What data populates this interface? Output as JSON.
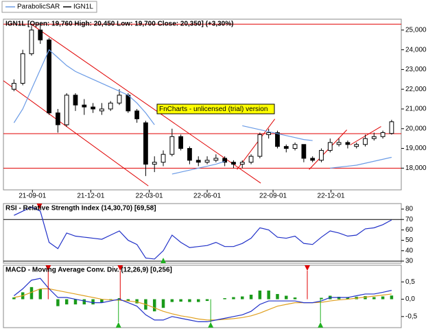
{
  "chart_data": [
    {
      "type": "candlestick",
      "name": "IGN1L",
      "color": "#000000",
      "title": "IGN1L  [Open: 19,760  High: 20,450  Low: 19,700  Close: 20,350]  (+3,30%)",
      "watermark": "FnCharts - unlicensed (trial) version",
      "x": [
        0,
        1,
        2,
        3,
        4,
        5,
        6,
        7,
        8,
        9,
        10,
        11,
        12,
        13,
        14,
        15,
        16,
        17,
        18,
        19,
        20,
        21,
        22,
        23,
        24,
        25,
        26,
        27,
        28,
        29,
        30,
        31,
        32,
        33,
        34,
        35,
        36,
        37,
        38,
        39,
        40,
        41,
        42,
        43
      ],
      "open": [
        22000,
        22300,
        23800,
        25000,
        24500,
        20800,
        20200,
        21700,
        21200,
        21100,
        20900,
        21000,
        21300,
        21700,
        20900,
        20300,
        18200,
        18300,
        18700,
        19600,
        19000,
        18400,
        18300,
        18400,
        18500,
        18300,
        18200,
        18300,
        18600,
        19700,
        19800,
        19100,
        19000,
        19200,
        18500,
        18400,
        18900,
        19200,
        19300,
        19100,
        19200,
        19500,
        19600,
        19760
      ],
      "high": [
        22500,
        24000,
        25200,
        25300,
        24600,
        21000,
        21800,
        21800,
        21500,
        21300,
        21300,
        21400,
        22000,
        21800,
        21000,
        20400,
        18600,
        18900,
        20000,
        19700,
        19100,
        18600,
        18600,
        18700,
        18600,
        18400,
        18400,
        18700,
        19800,
        20000,
        19900,
        19200,
        19300,
        19200,
        18600,
        19000,
        19500,
        19500,
        19400,
        19300,
        19700,
        19800,
        19900,
        20450
      ],
      "low": [
        21900,
        22200,
        23700,
        24300,
        20700,
        19800,
        20100,
        20900,
        20700,
        20800,
        20700,
        20900,
        21200,
        20800,
        20300,
        17600,
        17800,
        18100,
        18600,
        18900,
        18200,
        18100,
        18200,
        18300,
        18100,
        18000,
        18000,
        18200,
        18500,
        19500,
        19000,
        18800,
        18900,
        18300,
        18300,
        18300,
        18800,
        19100,
        19000,
        19000,
        19100,
        19400,
        19500,
        19700
      ],
      "close": [
        22300,
        23800,
        25000,
        24500,
        20800,
        20200,
        21700,
        21200,
        21100,
        21000,
        21000,
        21300,
        21700,
        20900,
        20500,
        18200,
        18300,
        18700,
        19600,
        19000,
        18400,
        18300,
        18400,
        18500,
        18300,
        18200,
        18300,
        18600,
        19700,
        19800,
        19100,
        19000,
        19200,
        18500,
        18400,
        18900,
        19300,
        19300,
        19200,
        19200,
        19500,
        19600,
        19800,
        20350
      ],
      "series": [
        {
          "name": "ParabolicSAR",
          "color": "#6a9be6",
          "values": [
            20300,
            21000,
            22000,
            23000,
            24000,
            23600,
            23200,
            22900,
            22700,
            22500,
            22300,
            22100,
            21900,
            21700,
            21300,
            20800,
            20200,
            null,
            17700,
            17800,
            17900,
            18000,
            18100,
            18200,
            18350,
            null,
            20150,
            20050,
            19950,
            19850,
            19750,
            19650,
            19550,
            19450,
            19400,
            null,
            18000,
            18050,
            18100,
            18150,
            18250,
            18350,
            18450,
            18550
          ]
        }
      ],
      "hlines": [
        25300,
        19750,
        18000
      ],
      "trendlines": [
        [
          -1.2,
          22430,
          15.3,
          17100
        ],
        [
          1.95,
          25300,
          28.1,
          17240
        ],
        [
          25.4,
          17930,
          29.7,
          20490
        ],
        [
          33.6,
          17930,
          37.9,
          19940
        ],
        [
          38.3,
          19180,
          41.8,
          20110
        ]
      ],
      "line_color": "#e00000",
      "xlim": [
        -1.2,
        44.1
      ],
      "xticks": [
        {
          "value": 2.1,
          "label": "21-09-01"
        },
        {
          "value": 8.75,
          "label": "21-12-01"
        },
        {
          "value": 15.4,
          "label": "22-03-01"
        },
        {
          "value": 22.0,
          "label": "22-06-01"
        },
        {
          "value": 29.5,
          "label": "22-09-01"
        },
        {
          "value": 36.1,
          "label": "22-12-01"
        }
      ],
      "ylim": [
        16900,
        25550
      ],
      "yticks": [
        {
          "value": 18000,
          "label": "18,000"
        },
        {
          "value": 19000,
          "label": "19,000"
        },
        {
          "value": 20000,
          "label": "20,000"
        },
        {
          "value": 21000,
          "label": "21,000"
        },
        {
          "value": 22000,
          "label": "22,000"
        },
        {
          "value": 23000,
          "label": "23,000"
        },
        {
          "value": 24000,
          "label": "24,000"
        },
        {
          "value": 25000,
          "label": "25,000"
        }
      ]
    },
    {
      "type": "line",
      "title": "RSI - Relative Strength Index (14,30,70) [69,58]",
      "x": [
        0,
        1,
        2,
        3,
        4,
        5,
        6,
        7,
        8,
        9,
        10,
        11,
        12,
        13,
        14,
        15,
        16,
        17,
        18,
        19,
        20,
        21,
        22,
        23,
        24,
        25,
        26,
        27,
        28,
        29,
        30,
        31,
        32,
        33,
        34,
        35,
        36,
        37,
        38,
        39,
        40,
        41,
        42,
        43
      ],
      "series": [
        {
          "name": "RSI",
          "color": "#2030c8",
          "values": [
            74,
            78,
            82,
            78,
            48,
            42,
            57,
            54,
            53,
            52,
            51,
            55,
            59,
            50,
            46,
            33,
            32,
            40,
            55,
            48,
            43,
            44,
            45,
            48,
            44,
            44,
            47,
            52,
            62,
            60,
            53,
            52,
            54,
            47,
            46,
            53,
            59,
            57,
            54,
            55,
            61,
            62,
            65,
            69.58
          ]
        }
      ],
      "hlines": [
        70,
        30
      ],
      "line_color": "#000000",
      "markers": [
        {
          "x": 2.9,
          "kind": "sell"
        },
        {
          "x": 17,
          "kind": "buy"
        }
      ],
      "xlim": [
        -1.2,
        44.1
      ],
      "ylim": [
        28,
        85.3
      ],
      "yticks": [
        30,
        40,
        50,
        60,
        70,
        80
      ]
    },
    {
      "type": "combo",
      "title": "MACD - Moving Average Conv. Div. (12,26,9) [0,256]",
      "x": [
        0,
        1,
        2,
        3,
        4,
        5,
        6,
        7,
        8,
        9,
        10,
        11,
        12,
        13,
        14,
        15,
        16,
        17,
        18,
        19,
        20,
        21,
        22,
        23,
        24,
        25,
        26,
        27,
        28,
        29,
        30,
        31,
        32,
        33,
        34,
        35,
        36,
        37,
        38,
        39,
        40,
        41,
        42,
        43
      ],
      "series": [
        {
          "name": "Histogram",
          "kind": "bar",
          "color": "#1a9a1a",
          "values": [
            0.05,
            0.2,
            0.35,
            0.3,
            0.0,
            -0.2,
            -0.15,
            -0.15,
            -0.15,
            -0.15,
            -0.1,
            -0.03,
            0.03,
            -0.05,
            -0.12,
            -0.3,
            -0.35,
            -0.25,
            -0.08,
            -0.07,
            -0.08,
            -0.08,
            -0.05,
            0.0,
            0.03,
            0.06,
            0.08,
            0.13,
            0.25,
            0.25,
            0.15,
            0.1,
            0.05,
            0.0,
            0.0,
            0.04,
            0.1,
            0.07,
            0.05,
            0.07,
            0.09,
            0.06,
            0.08,
            0.106
          ]
        },
        {
          "name": "Signal",
          "kind": "line",
          "color": "#e0a020",
          "values": [
            0.05,
            0.1,
            0.2,
            0.3,
            0.3,
            0.25,
            0.2,
            0.15,
            0.1,
            0.05,
            0.0,
            -0.02,
            -0.03,
            -0.05,
            -0.08,
            -0.15,
            -0.25,
            -0.35,
            -0.42,
            -0.48,
            -0.52,
            -0.57,
            -0.6,
            -0.6,
            -0.58,
            -0.56,
            -0.53,
            -0.48,
            -0.4,
            -0.3,
            -0.2,
            -0.15,
            -0.1,
            -0.1,
            -0.1,
            -0.09,
            -0.05,
            -0.02,
            0.0,
            0.03,
            0.06,
            0.09,
            0.12,
            0.15
          ]
        },
        {
          "name": "MACD",
          "kind": "line",
          "color": "#2030c8",
          "values": [
            0.1,
            0.3,
            0.55,
            0.6,
            0.3,
            0.05,
            0.05,
            0.0,
            -0.05,
            -0.1,
            -0.1,
            -0.05,
            0.0,
            -0.1,
            -0.2,
            -0.45,
            -0.6,
            -0.6,
            -0.5,
            -0.55,
            -0.6,
            -0.65,
            -0.65,
            -0.6,
            -0.55,
            -0.5,
            -0.45,
            -0.35,
            -0.15,
            -0.05,
            -0.05,
            -0.05,
            -0.05,
            -0.1,
            -0.1,
            -0.05,
            0.05,
            0.05,
            0.05,
            0.1,
            0.15,
            0.15,
            0.2,
            0.256
          ]
        }
      ],
      "markers": [
        {
          "x": 3.9,
          "kind": "sell"
        },
        {
          "x": 12.1,
          "kind": "sell"
        },
        {
          "x": 33.4,
          "kind": "sell"
        },
        {
          "x": 11.9,
          "kind": "buy"
        },
        {
          "x": 22.4,
          "kind": "buy"
        },
        {
          "x": 34.9,
          "kind": "buy"
        }
      ],
      "xlim": [
        -1.2,
        44.1
      ],
      "ylim": [
        -0.82,
        0.98
      ],
      "yticks": [
        {
          "value": -0.5,
          "label": "-0,5"
        },
        {
          "value": 0,
          "label": "0,0"
        },
        {
          "value": 0.5,
          "label": "0,5"
        }
      ]
    }
  ]
}
